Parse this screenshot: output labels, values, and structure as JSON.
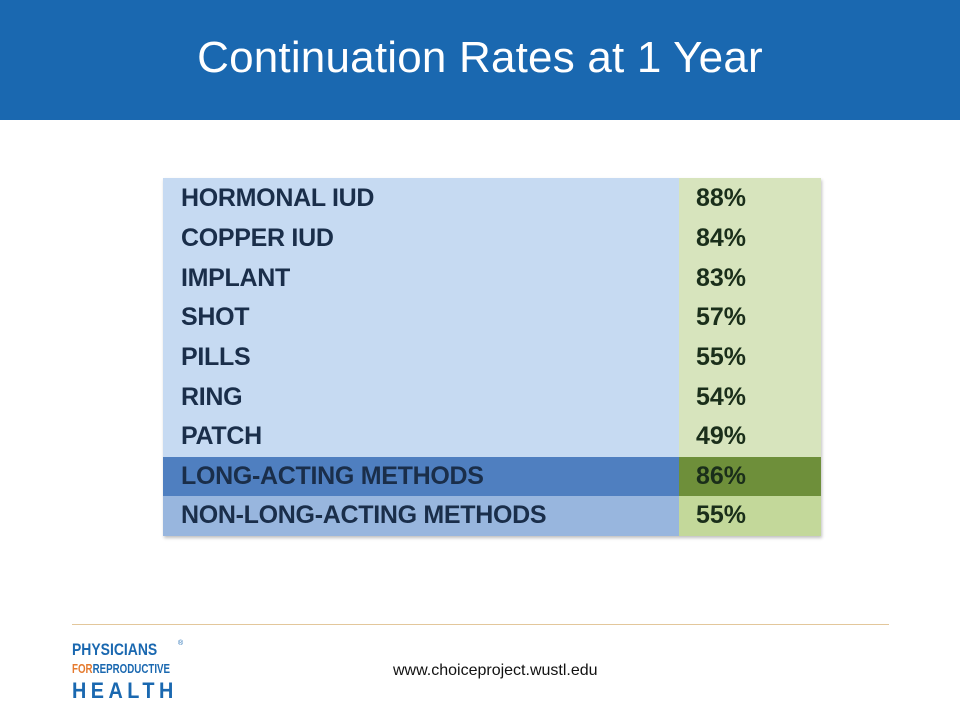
{
  "slide": {
    "title": "Continuation Rates at 1 Year"
  },
  "table": {
    "rows": [
      {
        "method": "HORMONAL IUD",
        "rate": "88%"
      },
      {
        "method": "COPPER IUD",
        "rate": "84%"
      },
      {
        "method": "IMPLANT",
        "rate": "83%"
      },
      {
        "method": "SHOT",
        "rate": "57%"
      },
      {
        "method": "PILLS",
        "rate": "55%"
      },
      {
        "method": "RING",
        "rate": "54%"
      },
      {
        "method": "PATCH",
        "rate": "49%"
      },
      {
        "method": "LONG-ACTING METHODS",
        "rate": "86%"
      },
      {
        "method": "NON-LONG-ACTING METHODS",
        "rate": "55%"
      }
    ]
  },
  "footer": {
    "logo_line1": "PHYSICIANS",
    "logo_line2_for": "FOR",
    "logo_line2_rest": "REPRODUCTIVE",
    "logo_line3": "HEALTH",
    "logo_registered": "®",
    "url": "www.choiceproject.wustl.edu"
  },
  "colors": {
    "header_bg": "#1a68b0",
    "method_cell": "#c6daf2",
    "rate_cell": "#d7e4bd",
    "long_acting_method": "#4f7fc0",
    "long_acting_rate": "#6e8f3a",
    "non_long_acting_method": "#98b6de",
    "non_long_acting_rate": "#c3d89a",
    "logo_blue": "#1a68b0",
    "logo_orange": "#e57a2e"
  }
}
